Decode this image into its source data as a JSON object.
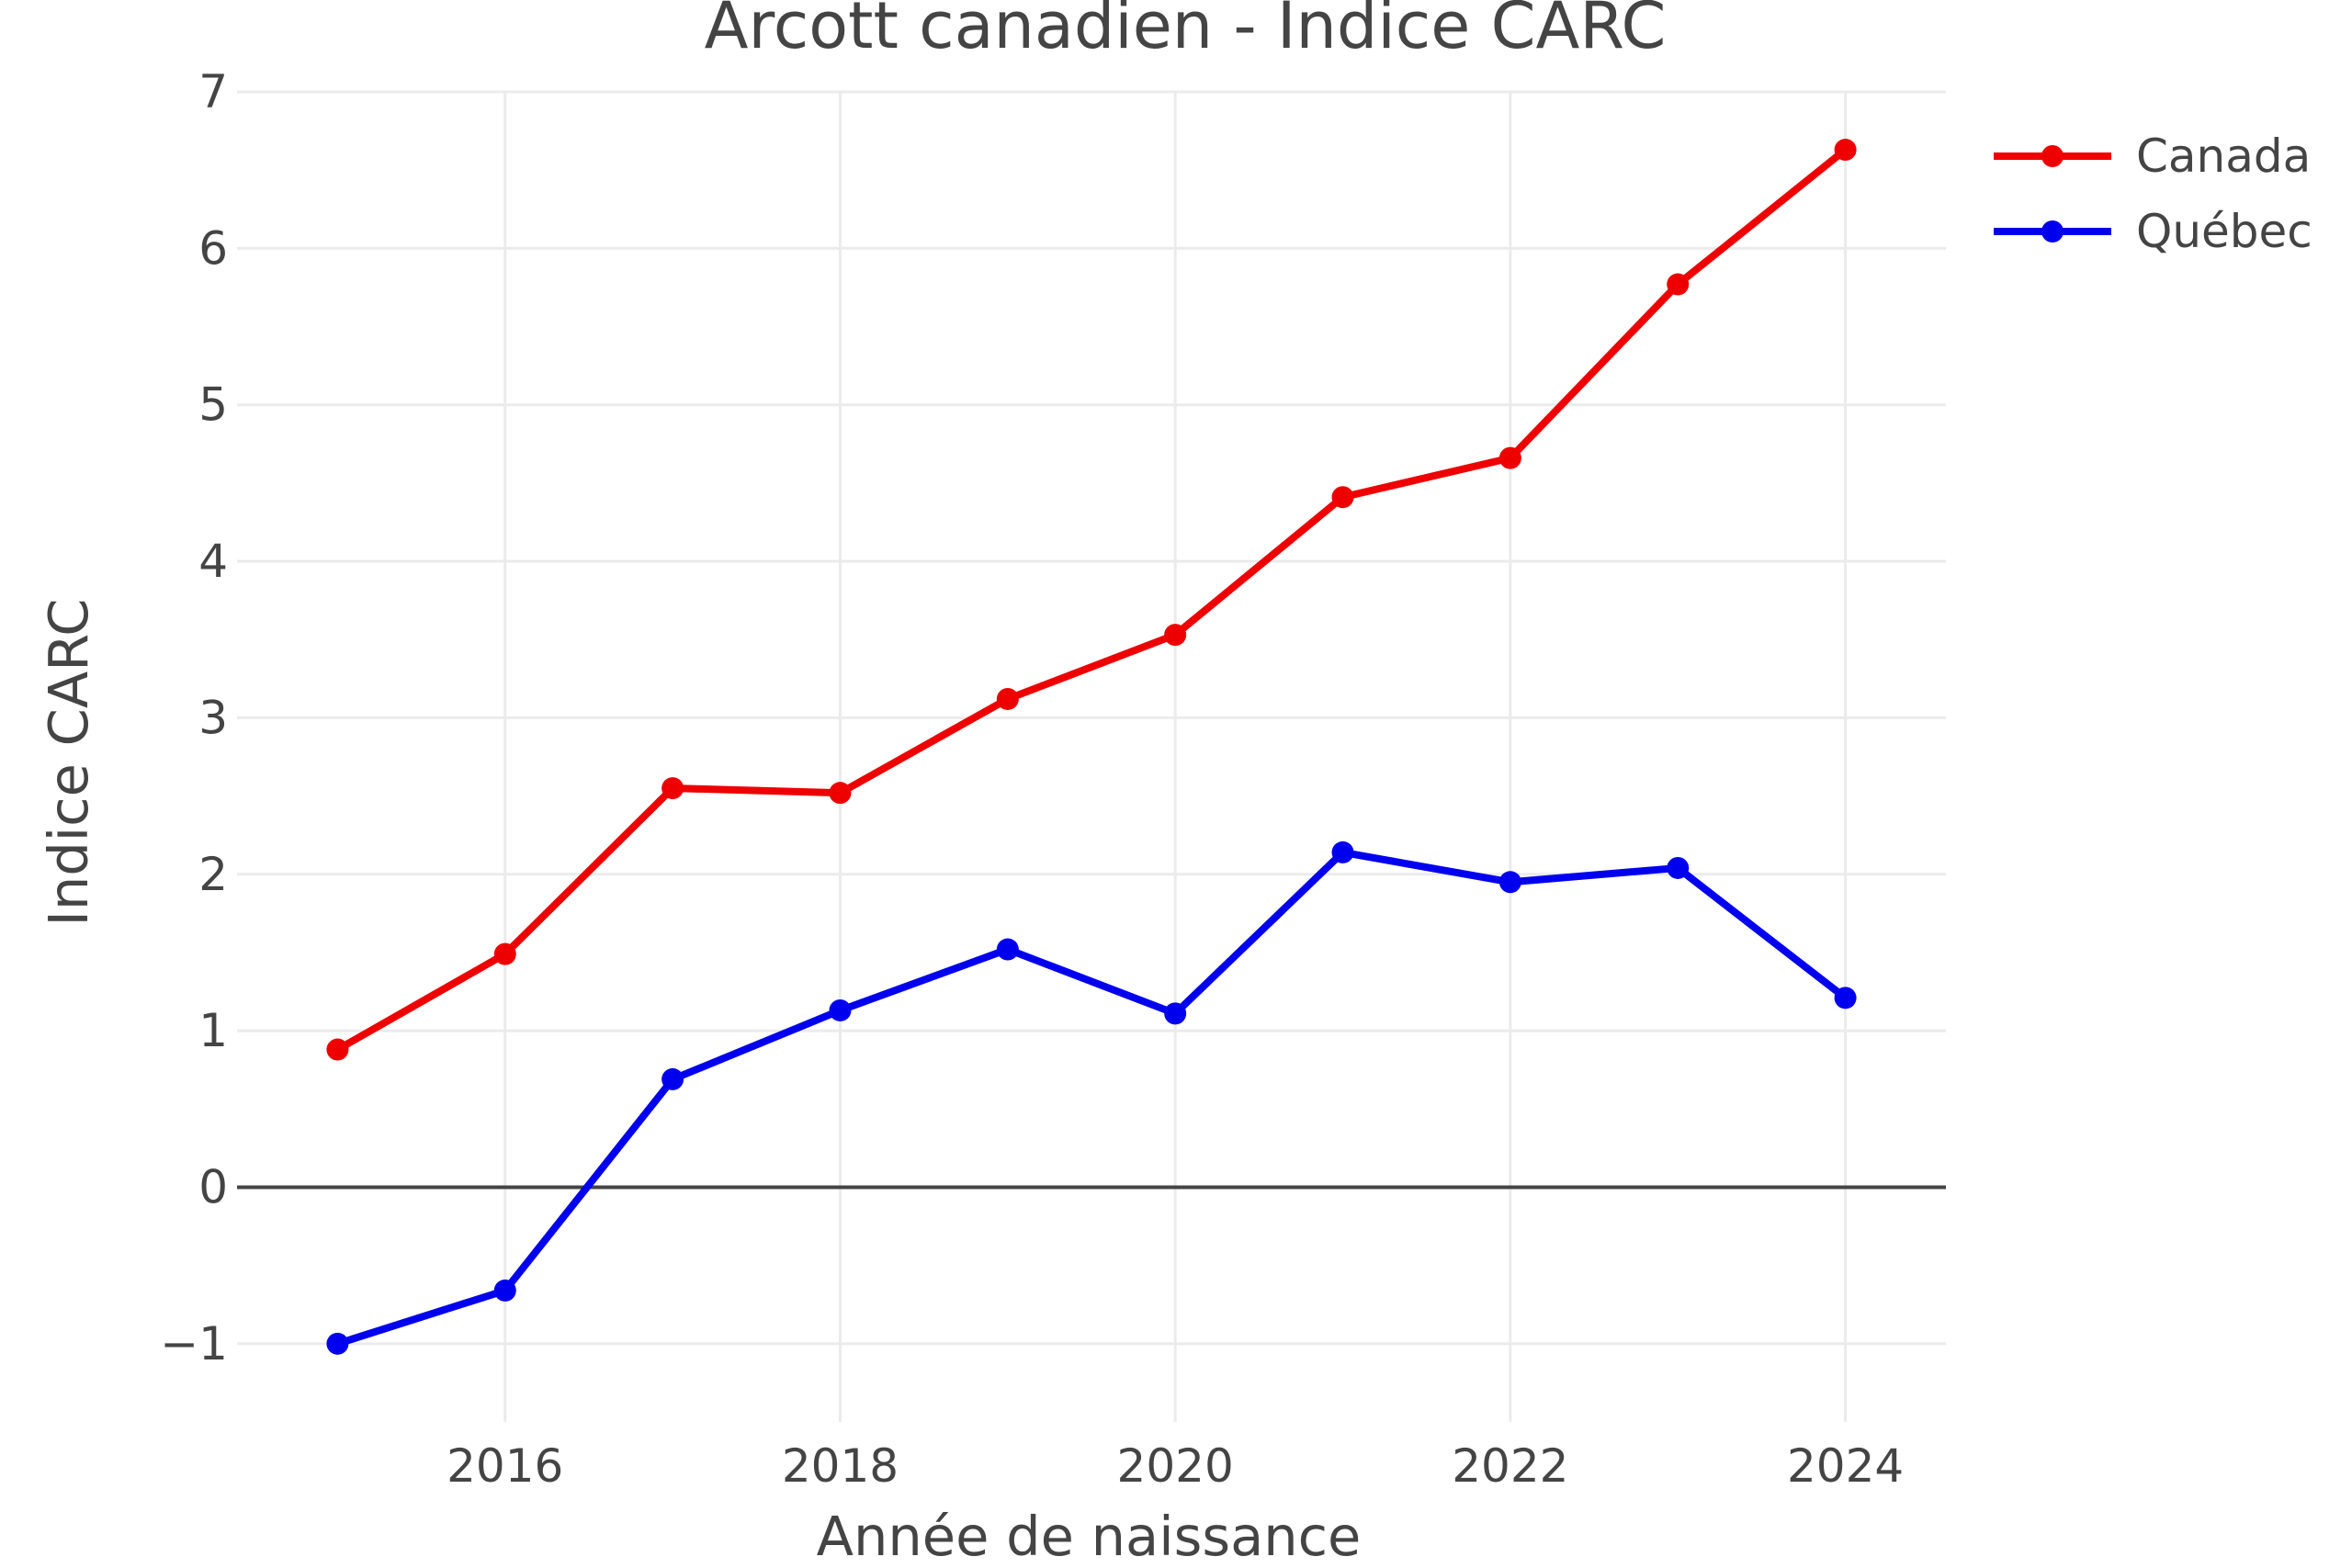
{
  "chart_data": {
    "type": "line",
    "title": "Arcott canadien - Indice CARC",
    "xlabel": "Année de naissance",
    "ylabel": "Indice CARC",
    "x": [
      2015,
      2016,
      2017,
      2018,
      2019,
      2020,
      2021,
      2022,
      2023,
      2024
    ],
    "xlim": [
      2014.4,
      2024.6
    ],
    "ylim": [
      -1.5,
      7
    ],
    "xticks": [
      2016,
      2018,
      2020,
      2022,
      2024
    ],
    "yticks": [
      -1,
      0,
      1,
      2,
      3,
      4,
      5,
      6,
      7
    ],
    "ytick_labels": [
      "−1",
      "0",
      "1",
      "2",
      "3",
      "4",
      "5",
      "6",
      "7"
    ],
    "grid": true,
    "legend_position": "top-right",
    "series": [
      {
        "name": "Canada",
        "color": "#ee0000",
        "values": [
          0.88,
          1.49,
          2.55,
          2.52,
          3.12,
          3.53,
          4.41,
          4.66,
          5.77,
          6.63
        ]
      },
      {
        "name": "Québec",
        "color": "#0000ee",
        "values": [
          -1.0,
          -0.66,
          0.69,
          1.13,
          1.52,
          1.11,
          2.14,
          1.95,
          2.04,
          1.21
        ]
      }
    ]
  }
}
